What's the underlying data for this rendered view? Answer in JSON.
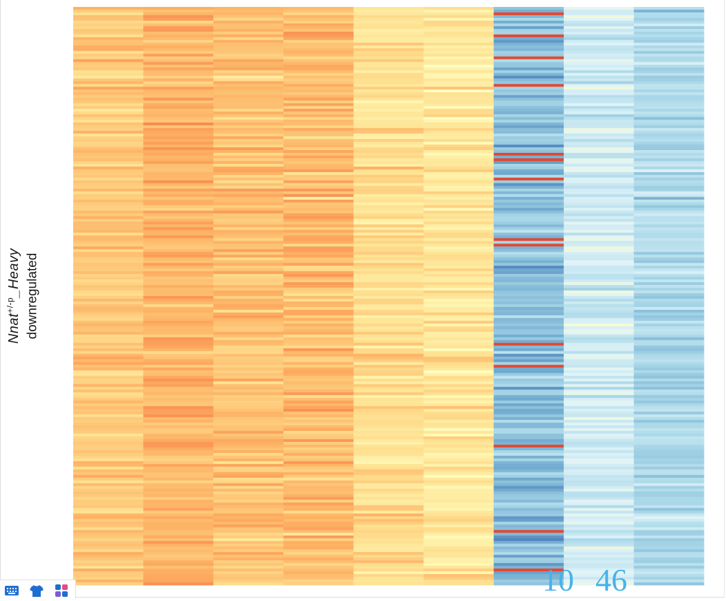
{
  "chart_data": {
    "type": "heatmap",
    "ylabel": {
      "gene": "Nnat",
      "superscript": "+/-p",
      "suffix": "_Heavy",
      "line2": "downregulated"
    },
    "n_columns": 9,
    "column_profiles": [
      {
        "mean": 0.68,
        "spread": 0.1
      },
      {
        "mean": 0.73,
        "spread": 0.1
      },
      {
        "mean": 0.7,
        "spread": 0.11
      },
      {
        "mean": 0.71,
        "spread": 0.13
      },
      {
        "mean": 0.62,
        "spread": 0.12
      },
      {
        "mean": 0.6,
        "spread": 0.12
      },
      {
        "mean": 0.18,
        "spread": 0.16
      },
      {
        "mean": 0.34,
        "spread": 0.13
      },
      {
        "mean": 0.26,
        "spread": 0.12
      }
    ],
    "color_scale": [
      "#4575b4",
      "#74add1",
      "#abd9e9",
      "#e0f3f8",
      "#ffffbf",
      "#fee090",
      "#fdae61",
      "#f46d43",
      "#d73027"
    ],
    "value_range": [
      0,
      1
    ]
  },
  "pager": {
    "current": "10",
    "total": "46"
  },
  "toolbar": {
    "icons": [
      "keyboard-icon",
      "shirt-icon",
      "apps-icon"
    ]
  }
}
